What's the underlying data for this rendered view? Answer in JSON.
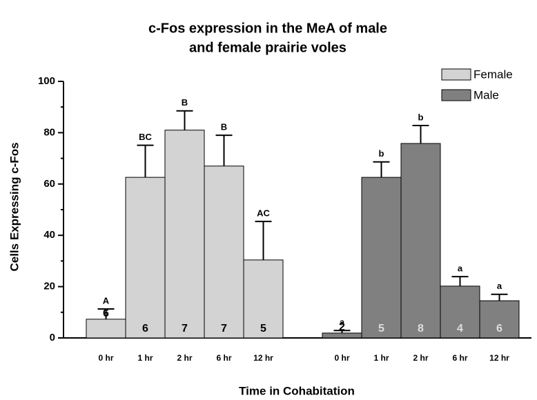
{
  "chart_data": {
    "type": "bar",
    "title": [
      "c-Fos expression in the MeA of male",
      "and female prairie voles"
    ],
    "ylabel": "Cells Expressing c-Fos",
    "xlabel": "Time in Cohabitation",
    "categories": [
      "0 hr",
      "1 hr",
      "2 hr",
      "6 hr",
      "12 hr"
    ],
    "ylim": [
      0,
      100
    ],
    "yticks": [
      0,
      20,
      40,
      60,
      80,
      100
    ],
    "minor_yticks": [
      10,
      30,
      50,
      70,
      90
    ],
    "legend": "top-right",
    "series": [
      {
        "name": "Female",
        "color": "#d3d3d3",
        "values": [
          7.3,
          62.6,
          81,
          67,
          30.4
        ],
        "errors": [
          4,
          12.5,
          7.5,
          12,
          15
        ],
        "letters": [
          "A",
          "BC",
          "B",
          "B",
          "AC"
        ],
        "n": [
          "6",
          "6",
          "7",
          "7",
          "5"
        ],
        "n_color": "#000000"
      },
      {
        "name": "Male",
        "color": "#808080",
        "values": [
          1.9,
          62.6,
          75.8,
          20.2,
          14.5
        ],
        "errors": [
          1,
          6,
          7,
          3.7,
          2.5
        ],
        "letters": [
          "a",
          "b",
          "b",
          "a",
          "a"
        ],
        "n": [
          "2",
          "5",
          "8",
          "4",
          "6"
        ],
        "n_color": "#dddddd"
      }
    ]
  }
}
